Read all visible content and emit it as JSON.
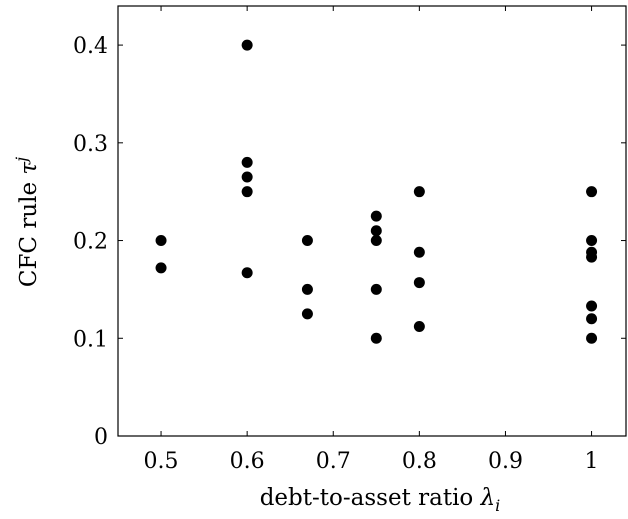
{
  "chart_data": {
    "type": "scatter",
    "xlabel": "debt-to-asset ratio",
    "xlabel_symbol": "λ",
    "xlabel_sub": "i",
    "ylabel": "CFC rule",
    "ylabel_symbol": "τ",
    "ylabel_sup": "j",
    "xlim": [
      0.45,
      1.04
    ],
    "ylim": [
      0,
      0.44
    ],
    "xticks": [
      0.5,
      0.6,
      0.7,
      0.8,
      0.9,
      1
    ],
    "xtick_labels": [
      "0.5",
      "0.6",
      "0.7",
      "0.8",
      "0.9",
      "1"
    ],
    "yticks": [
      0,
      0.1,
      0.2,
      0.3,
      0.4
    ],
    "ytick_labels": [
      "0",
      "0.1",
      "0.2",
      "0.3",
      "0.4"
    ],
    "grid": false,
    "marker_color": "#000000",
    "points": [
      {
        "x": 0.5,
        "y": 0.2
      },
      {
        "x": 0.5,
        "y": 0.172
      },
      {
        "x": 0.6,
        "y": 0.4
      },
      {
        "x": 0.6,
        "y": 0.28
      },
      {
        "x": 0.6,
        "y": 0.265
      },
      {
        "x": 0.6,
        "y": 0.25
      },
      {
        "x": 0.6,
        "y": 0.167
      },
      {
        "x": 0.67,
        "y": 0.2
      },
      {
        "x": 0.67,
        "y": 0.15
      },
      {
        "x": 0.67,
        "y": 0.125
      },
      {
        "x": 0.75,
        "y": 0.225
      },
      {
        "x": 0.75,
        "y": 0.21
      },
      {
        "x": 0.75,
        "y": 0.2
      },
      {
        "x": 0.75,
        "y": 0.15
      },
      {
        "x": 0.75,
        "y": 0.1
      },
      {
        "x": 0.8,
        "y": 0.25
      },
      {
        "x": 0.8,
        "y": 0.188
      },
      {
        "x": 0.8,
        "y": 0.157
      },
      {
        "x": 0.8,
        "y": 0.112
      },
      {
        "x": 1,
        "y": 0.25
      },
      {
        "x": 1,
        "y": 0.2
      },
      {
        "x": 1,
        "y": 0.188
      },
      {
        "x": 1,
        "y": 0.183
      },
      {
        "x": 1,
        "y": 0.133
      },
      {
        "x": 1,
        "y": 0.12
      },
      {
        "x": 1,
        "y": 0.1
      }
    ]
  }
}
